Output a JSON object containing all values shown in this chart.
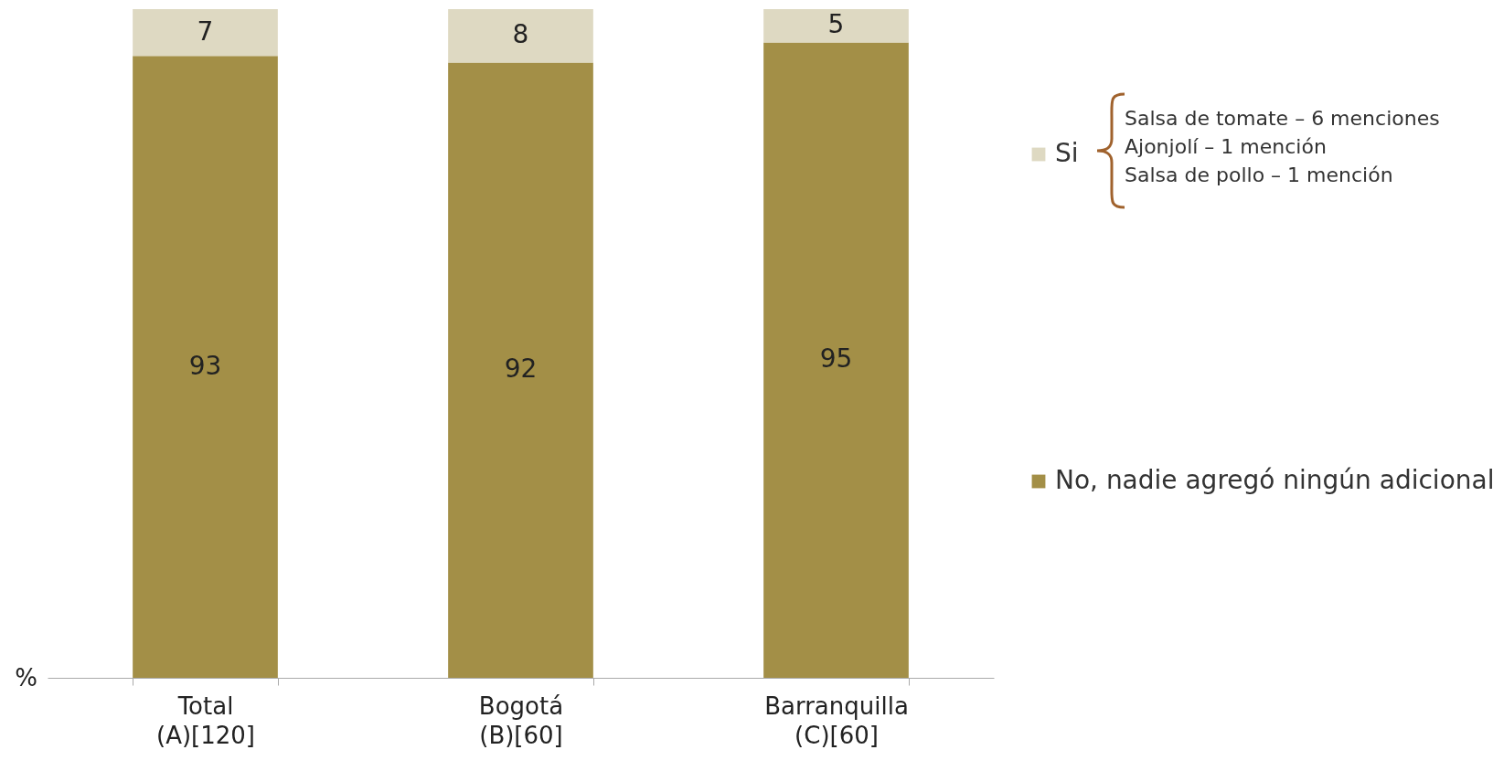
{
  "chart_data": {
    "type": "bar",
    "stacked": true,
    "data_labels": true,
    "ylabel": "%",
    "legend": "right",
    "categories": [
      "Total\n(A)[120]",
      "Bogotá\n(B)[60]",
      "Barranquilla\n(C)[60]"
    ],
    "series": [
      {
        "name": "No, nadie agregó ningún adicional",
        "color": "#a38f47",
        "values": [
          93,
          92,
          95
        ]
      },
      {
        "name": "Si",
        "color": "#ded9c2",
        "values": [
          7,
          8,
          5
        ]
      }
    ],
    "annotations": [
      "Salsa de tomate – 6 menciones",
      "Ajonjolí – 1 mención",
      "Salsa de pollo – 1 mención"
    ]
  }
}
